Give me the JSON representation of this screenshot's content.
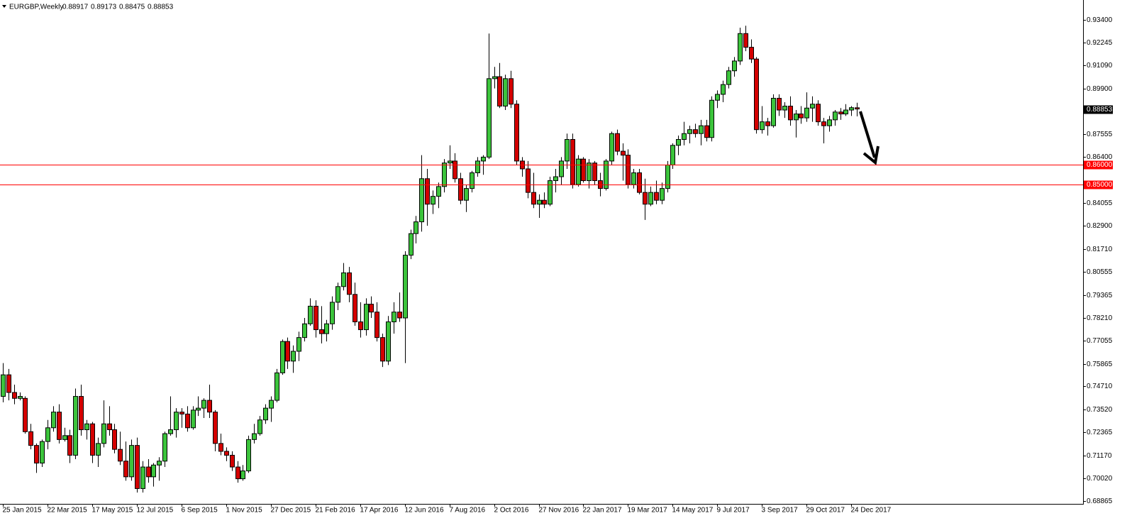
{
  "chart_data": {
    "type": "candlestick",
    "title": "EURGBP,Weekly",
    "ohlc_header": [
      0.88917,
      0.89173,
      0.88475,
      0.88853
    ],
    "categories": [
      "25 Jan 2015",
      null,
      null,
      null,
      null,
      null,
      null,
      null,
      "22 Mar 2015",
      null,
      null,
      null,
      null,
      null,
      null,
      null,
      "17 May 2015",
      null,
      null,
      null,
      null,
      null,
      null,
      null,
      "12 Jul 2015",
      null,
      null,
      null,
      null,
      null,
      null,
      null,
      "6 Sep 2015",
      null,
      null,
      null,
      null,
      null,
      null,
      null,
      "1 Nov 2015",
      null,
      null,
      null,
      null,
      null,
      null,
      null,
      "27 Dec 2015",
      null,
      null,
      null,
      null,
      null,
      null,
      null,
      "21 Feb 2016",
      null,
      null,
      null,
      null,
      null,
      null,
      null,
      "17 Apr 2016",
      null,
      null,
      null,
      null,
      null,
      null,
      null,
      "12 Jun 2016",
      null,
      null,
      null,
      null,
      null,
      null,
      null,
      "7 Aug 2016",
      null,
      null,
      null,
      null,
      null,
      null,
      null,
      "2 Oct 2016",
      null,
      null,
      null,
      null,
      null,
      null,
      null,
      "27 Nov 2016",
      null,
      null,
      null,
      null,
      null,
      null,
      null,
      "22 Jan 2017",
      null,
      null,
      null,
      null,
      null,
      null,
      null,
      "19 Mar 2017",
      null,
      null,
      null,
      null,
      null,
      null,
      null,
      "14 May 2017",
      null,
      null,
      null,
      null,
      null,
      null,
      null,
      "9 Jul 2017",
      null,
      null,
      null,
      null,
      null,
      null,
      null,
      "3 Sep 2017",
      null,
      null,
      null,
      null,
      null,
      null,
      null,
      "29 Oct 2017",
      null,
      null,
      null,
      null,
      null,
      null,
      null,
      "24 Dec 2017",
      null
    ],
    "open": [
      0.742,
      0.753,
      0.744,
      0.741,
      0.741,
      0.724,
      0.717,
      0.708,
      0.719,
      0.726,
      0.734,
      0.72,
      0.722,
      0.712,
      0.742,
      0.725,
      0.728,
      0.712,
      0.718,
      0.728,
      0.725,
      0.715,
      0.709,
      0.701,
      0.717,
      0.695,
      0.706,
      0.701,
      0.707,
      0.709,
      0.723,
      0.725,
      0.734,
      0.733,
      0.726,
      0.735,
      0.736,
      0.74,
      0.734,
      0.718,
      0.714,
      0.712,
      0.706,
      0.7,
      0.704,
      0.72,
      0.723,
      0.73,
      0.736,
      0.74,
      0.754,
      0.77,
      0.76,
      0.765,
      0.772,
      0.779,
      0.788,
      0.776,
      0.774,
      0.779,
      0.79,
      0.798,
      0.805,
      0.794,
      0.78,
      0.776,
      0.789,
      0.785,
      0.772,
      0.76,
      0.78,
      0.785,
      0.782,
      0.814,
      0.825,
      0.831,
      0.853,
      0.84,
      0.844,
      0.849,
      0.861,
      0.862,
      0.853,
      0.842,
      0.848,
      0.856,
      0.862,
      0.864,
      0.904,
      0.905,
      0.89,
      0.904,
      0.891,
      0.862,
      0.858,
      0.846,
      0.84,
      0.842,
      0.84,
      0.852,
      0.854,
      0.862,
      0.873,
      0.85,
      0.863,
      0.852,
      0.861,
      0.852,
      0.848,
      0.862,
      0.876,
      0.867,
      0.865,
      0.85,
      0.856,
      0.846,
      0.84,
      0.846,
      0.842,
      0.848,
      0.86,
      0.87,
      0.873,
      0.876,
      0.878,
      0.876,
      0.88,
      0.874,
      0.893,
      0.896,
      0.901,
      0.908,
      0.913,
      0.927,
      0.92,
      0.914,
      0.878,
      0.882,
      0.88,
      0.894,
      0.888,
      0.89,
      0.883,
      0.886,
      0.884,
      0.889,
      0.891,
      0.882,
      0.88,
      0.883,
      0.887,
      0.886,
      0.888,
      0.88917
    ],
    "high": [
      0.759,
      0.756,
      0.748,
      0.744,
      0.742,
      0.728,
      0.718,
      0.72,
      0.73,
      0.737,
      0.738,
      0.726,
      0.725,
      0.746,
      0.748,
      0.73,
      0.729,
      0.721,
      0.74,
      0.737,
      0.728,
      0.724,
      0.719,
      0.72,
      0.721,
      0.709,
      0.71,
      0.708,
      0.711,
      0.724,
      0.742,
      0.736,
      0.736,
      0.737,
      0.737,
      0.742,
      0.741,
      0.748,
      0.735,
      0.723,
      0.716,
      0.714,
      0.709,
      0.707,
      0.722,
      0.728,
      0.732,
      0.738,
      0.742,
      0.756,
      0.771,
      0.772,
      0.768,
      0.775,
      0.782,
      0.792,
      0.791,
      0.788,
      0.781,
      0.793,
      0.8,
      0.81,
      0.808,
      0.8,
      0.79,
      0.792,
      0.793,
      0.79,
      0.774,
      0.783,
      0.79,
      0.795,
      0.816,
      0.827,
      0.834,
      0.865,
      0.858,
      0.847,
      0.851,
      0.863,
      0.87,
      0.866,
      0.856,
      0.85,
      0.857,
      0.864,
      0.865,
      0.927,
      0.91,
      0.912,
      0.906,
      0.908,
      0.893,
      0.864,
      0.862,
      0.856,
      0.845,
      0.846,
      0.854,
      0.858,
      0.864,
      0.876,
      0.876,
      0.865,
      0.864,
      0.863,
      0.862,
      0.856,
      0.863,
      0.877,
      0.878,
      0.871,
      0.868,
      0.858,
      0.858,
      0.853,
      0.849,
      0.852,
      0.851,
      0.862,
      0.871,
      0.875,
      0.882,
      0.88,
      0.881,
      0.883,
      0.883,
      0.895,
      0.898,
      0.903,
      0.91,
      0.915,
      0.93,
      0.931,
      0.924,
      0.915,
      0.89,
      0.884,
      0.896,
      0.896,
      0.892,
      0.895,
      0.888,
      0.89,
      0.897,
      0.895,
      0.893,
      0.884,
      0.885,
      0.888,
      0.889,
      0.891,
      0.89,
      0.89173
    ],
    "low": [
      0.739,
      0.74,
      0.738,
      0.74,
      0.723,
      0.715,
      0.703,
      0.706,
      0.715,
      0.724,
      0.718,
      0.719,
      0.708,
      0.71,
      0.722,
      0.72,
      0.708,
      0.706,
      0.716,
      0.722,
      0.713,
      0.707,
      0.699,
      0.699,
      0.693,
      0.693,
      0.698,
      0.696,
      0.699,
      0.706,
      0.722,
      0.721,
      0.726,
      0.724,
      0.725,
      0.732,
      0.731,
      0.731,
      0.714,
      0.712,
      0.709,
      0.704,
      0.698,
      0.699,
      0.703,
      0.718,
      0.722,
      0.728,
      0.729,
      0.739,
      0.753,
      0.756,
      0.754,
      0.76,
      0.77,
      0.778,
      0.772,
      0.769,
      0.77,
      0.776,
      0.786,
      0.796,
      0.79,
      0.778,
      0.772,
      0.773,
      0.782,
      0.77,
      0.757,
      0.758,
      0.774,
      0.78,
      0.759,
      0.812,
      0.82,
      0.826,
      0.829,
      0.835,
      0.838,
      0.846,
      0.858,
      0.851,
      0.84,
      0.836,
      0.846,
      0.854,
      0.855,
      0.863,
      0.899,
      0.889,
      0.888,
      0.889,
      0.86,
      0.854,
      0.843,
      0.838,
      0.833,
      0.838,
      0.839,
      0.846,
      0.85,
      0.858,
      0.848,
      0.849,
      0.851,
      0.848,
      0.85,
      0.844,
      0.847,
      0.86,
      0.865,
      0.852,
      0.848,
      0.848,
      0.845,
      0.832,
      0.839,
      0.84,
      0.84,
      0.846,
      0.858,
      0.865,
      0.87,
      0.871,
      0.874,
      0.87,
      0.872,
      0.872,
      0.889,
      0.892,
      0.899,
      0.905,
      0.911,
      0.918,
      0.912,
      0.876,
      0.876,
      0.875,
      0.879,
      0.885,
      0.884,
      0.88,
      0.874,
      0.881,
      0.882,
      0.882,
      0.88,
      0.871,
      0.877,
      0.88,
      0.883,
      0.885,
      0.885,
      0.88475
    ],
    "close": [
      0.753,
      0.744,
      0.741,
      0.742,
      0.724,
      0.717,
      0.708,
      0.719,
      0.726,
      0.734,
      0.72,
      0.722,
      0.712,
      0.742,
      0.725,
      0.728,
      0.712,
      0.718,
      0.728,
      0.725,
      0.715,
      0.709,
      0.701,
      0.717,
      0.695,
      0.706,
      0.701,
      0.707,
      0.709,
      0.723,
      0.725,
      0.734,
      0.733,
      0.726,
      0.735,
      0.736,
      0.74,
      0.734,
      0.718,
      0.714,
      0.712,
      0.706,
      0.7,
      0.704,
      0.72,
      0.723,
      0.73,
      0.736,
      0.74,
      0.754,
      0.77,
      0.76,
      0.765,
      0.772,
      0.779,
      0.788,
      0.776,
      0.774,
      0.779,
      0.79,
      0.798,
      0.805,
      0.794,
      0.78,
      0.776,
      0.789,
      0.785,
      0.772,
      0.76,
      0.78,
      0.785,
      0.782,
      0.814,
      0.825,
      0.831,
      0.853,
      0.84,
      0.844,
      0.849,
      0.861,
      0.862,
      0.853,
      0.842,
      0.848,
      0.856,
      0.862,
      0.864,
      0.904,
      0.905,
      0.89,
      0.904,
      0.891,
      0.862,
      0.858,
      0.846,
      0.84,
      0.842,
      0.84,
      0.852,
      0.854,
      0.862,
      0.873,
      0.85,
      0.863,
      0.852,
      0.861,
      0.852,
      0.848,
      0.862,
      0.876,
      0.867,
      0.865,
      0.85,
      0.856,
      0.846,
      0.84,
      0.846,
      0.842,
      0.848,
      0.86,
      0.87,
      0.873,
      0.876,
      0.878,
      0.876,
      0.88,
      0.874,
      0.893,
      0.896,
      0.901,
      0.908,
      0.913,
      0.927,
      0.92,
      0.914,
      0.878,
      0.882,
      0.88,
      0.894,
      0.888,
      0.89,
      0.883,
      0.886,
      0.884,
      0.889,
      0.891,
      0.882,
      0.88,
      0.883,
      0.887,
      0.886,
      0.888,
      0.8892,
      0.88853
    ],
    "up_color": "#3cc43c",
    "down_color": "#d40000",
    "ylim": [
      0.6872,
      0.9441
    ],
    "yticks": [
      {
        "value": 0.934,
        "label": "0.93400"
      },
      {
        "value": 0.92245,
        "label": "0.92245"
      },
      {
        "value": 0.9109,
        "label": "0.91090"
      },
      {
        "value": 0.899,
        "label": "0.89900"
      },
      {
        "value": 0.87555,
        "label": "0.87555"
      },
      {
        "value": 0.864,
        "label": "0.86400"
      },
      {
        "value": 0.84055,
        "label": "0.84055"
      },
      {
        "value": 0.829,
        "label": "0.82900"
      },
      {
        "value": 0.8171,
        "label": "0.81710"
      },
      {
        "value": 0.80555,
        "label": "0.80555"
      },
      {
        "value": 0.79365,
        "label": "0.79365"
      },
      {
        "value": 0.7821,
        "label": "0.78210"
      },
      {
        "value": 0.77055,
        "label": "0.77055"
      },
      {
        "value": 0.75865,
        "label": "0.75865"
      },
      {
        "value": 0.7471,
        "label": "0.74710"
      },
      {
        "value": 0.7352,
        "label": "0.73520"
      },
      {
        "value": 0.72365,
        "label": "0.72365"
      },
      {
        "value": 0.7117,
        "label": "0.71170"
      },
      {
        "value": 0.7002,
        "label": "0.70020"
      },
      {
        "value": 0.68865,
        "label": "0.68865"
      }
    ],
    "hlines": [
      {
        "value": 0.86,
        "label": "0.86000"
      },
      {
        "value": 0.85,
        "label": "0.85000"
      }
    ],
    "hline_color": "#ff0000",
    "last_price": 0.88853
  }
}
